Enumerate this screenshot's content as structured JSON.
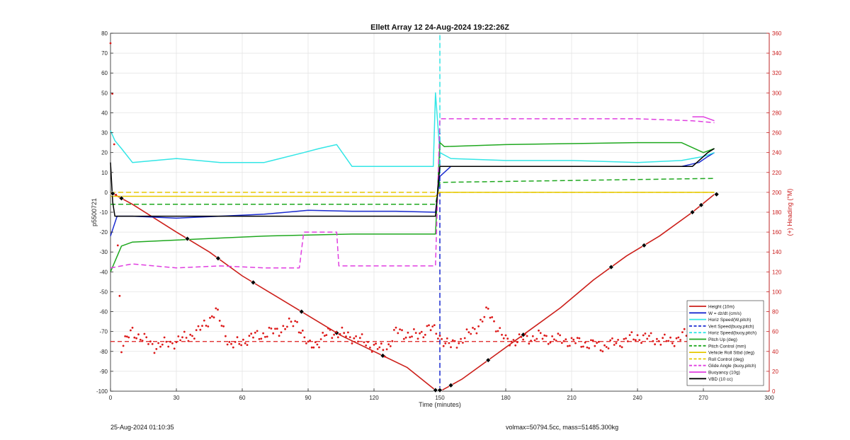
{
  "chart_data": {
    "type": "line",
    "title": "Ellett Array 12 24-Aug-2024 19:22:26Z",
    "xlabel": "Time (minutes)",
    "ylabel_left": "p5500721",
    "ylabel_right": "(+) Heading (°M)",
    "xlim": [
      0,
      300
    ],
    "ylim_left": [
      -100,
      80
    ],
    "ylim_right": [
      0,
      360
    ],
    "x_ticks": [
      0,
      30,
      60,
      90,
      120,
      150,
      180,
      210,
      240,
      270,
      300
    ],
    "y_ticks_left": [
      -100,
      -90,
      -80,
      -70,
      -60,
      -50,
      -40,
      -30,
      -20,
      -10,
      0,
      10,
      20,
      30,
      40,
      50,
      60,
      70,
      80
    ],
    "y_ticks_right": [
      0,
      20,
      40,
      60,
      80,
      100,
      120,
      140,
      160,
      180,
      200,
      220,
      240,
      260,
      280,
      300,
      320,
      340,
      360
    ],
    "grid": true,
    "legend_position": "bottom-right",
    "colors": {
      "height": "#cc1f1a",
      "w": "#1a2bd0",
      "horiz": "#33e6e6",
      "pitch": "#1fa81f",
      "roll": "#e6c800",
      "glide": "#e03ee0",
      "vbd": "#000000",
      "heading": "#dd1a1a",
      "axis_right": "#cc2222"
    },
    "series": [
      {
        "name": "Height (10m)",
        "style": "solid",
        "color": "#cc1f1a",
        "x": [
          0,
          10,
          20,
          30,
          45,
          60,
          75,
          90,
          105,
          120,
          135,
          148,
          151,
          160,
          175,
          190,
          205,
          220,
          235,
          250,
          265,
          275
        ],
        "y": [
          0,
          -6,
          -13,
          -20,
          -30,
          -42,
          -52,
          -62,
          -72,
          -80,
          -88,
          -99.5,
          -99.5,
          -94,
          -82,
          -70,
          -58,
          -44,
          -32,
          -22,
          -10,
          -1
        ]
      },
      {
        "name": "W = dz/dt (cm/s)",
        "style": "solid",
        "color": "#1a2bd0",
        "x": [
          0,
          3,
          10,
          30,
          50,
          70,
          90,
          110,
          130,
          148,
          150,
          155,
          180,
          210,
          240,
          260,
          268,
          272,
          275
        ],
        "y": [
          -22,
          -12,
          -12,
          -13,
          -12,
          -11,
          -9,
          -9.5,
          -9.5,
          -10,
          8,
          13,
          13,
          13,
          13,
          13,
          15,
          18,
          20
        ]
      },
      {
        "name": "Horiz Speed(W,pitch)",
        "style": "solid",
        "color": "#33e6e6",
        "x": [
          0,
          2,
          5,
          10,
          30,
          50,
          70,
          88,
          95,
          103,
          110,
          130,
          147,
          148,
          150,
          155,
          180,
          210,
          240,
          260,
          270,
          275
        ],
        "y": [
          31,
          26,
          22,
          15,
          17,
          15,
          15,
          20,
          22,
          24,
          13,
          13,
          13,
          50,
          20,
          17,
          16,
          16,
          15,
          16,
          18,
          20
        ]
      },
      {
        "name": "Vert Speed(buoy,pitch)",
        "style": "dashed",
        "color": "#1a2bd0",
        "x": [
          150,
          150,
          150
        ],
        "y": [
          -100,
          13,
          30
        ]
      },
      {
        "name": "Horiz Speed(buoy,pitch)",
        "style": "dashed",
        "color": "#33e6e6",
        "x": [
          150,
          150,
          150
        ],
        "y": [
          10,
          50,
          80
        ]
      },
      {
        "name": "Pitch Up (deg)",
        "style": "solid",
        "color": "#1fa81f",
        "x": [
          0,
          5,
          10,
          30,
          50,
          70,
          90,
          110,
          130,
          148,
          150,
          152,
          180,
          210,
          240,
          260,
          270,
          275
        ],
        "y": [
          -40,
          -27,
          -25,
          -24,
          -23,
          -22,
          -21.5,
          -21,
          -21,
          -21,
          25,
          23,
          24,
          24.5,
          25,
          25,
          20,
          22
        ]
      },
      {
        "name": "Pitch Control (mm)",
        "style": "dashed",
        "color": "#1fa81f",
        "x": [
          0,
          148,
          150,
          275
        ],
        "y": [
          -6,
          -6,
          5,
          7
        ]
      },
      {
        "name": "Vehicle Roll Stbd (deg)",
        "style": "solid",
        "color": "#e6c800",
        "x": [
          0,
          148,
          150,
          275
        ],
        "y": [
          -2,
          -2,
          0,
          0
        ]
      },
      {
        "name": "Roll Control (deg)",
        "style": "dashed",
        "color": "#e6c800",
        "x": [
          0,
          148,
          150,
          275
        ],
        "y": [
          0,
          0,
          0,
          0
        ]
      },
      {
        "name": "Glide Angle (buoy,pitch)",
        "style": "dashed",
        "color": "#e03ee0",
        "x": [
          0,
          10,
          30,
          50,
          70,
          86,
          88,
          103,
          104,
          130,
          148,
          150,
          155,
          180,
          210,
          240,
          265,
          275
        ],
        "y": [
          -38,
          -36,
          -38,
          -37,
          -38,
          -38,
          -20,
          -20,
          -37,
          -37,
          -37,
          37,
          37,
          37,
          37,
          37,
          36,
          35
        ]
      },
      {
        "name": "Buoyancy (10g)",
        "style": "solid",
        "color": "#e03ee0",
        "x": [
          265,
          270,
          275
        ],
        "y": [
          38,
          38,
          36
        ]
      },
      {
        "name": "VBD (10 cc)",
        "style": "solid",
        "color": "#000000",
        "x": [
          0,
          1,
          2,
          148,
          150,
          152,
          265,
          268,
          272,
          275
        ],
        "y": [
          15,
          -5,
          -12,
          -12,
          13,
          13,
          13,
          16,
          20,
          22
        ]
      }
    ],
    "heading": {
      "name": "Heading (deg, right axis)",
      "axis": "right",
      "mean": 50,
      "x": [
        0,
        5,
        10,
        20,
        30,
        40,
        48,
        55,
        65,
        75,
        85,
        90,
        95,
        100,
        110,
        120,
        125,
        130,
        140,
        145,
        150,
        155,
        165,
        172,
        180,
        195,
        210,
        225,
        240,
        255,
        265,
        270,
        275
      ],
      "y": [
        350,
        45,
        60,
        45,
        50,
        60,
        80,
        45,
        55,
        60,
        70,
        45,
        50,
        60,
        55,
        45,
        40,
        60,
        55,
        65,
        55,
        45,
        60,
        80,
        50,
        55,
        50,
        45,
        55,
        50,
        60,
        45,
        55
      ]
    },
    "height_markers_x": [
      1,
      5,
      35,
      49,
      65,
      87,
      103,
      124,
      148,
      150,
      155,
      172,
      188,
      228,
      243,
      265,
      269,
      276
    ],
    "annotations": {
      "left_footer": "25-Aug-2024 01:10:35",
      "right_footer": "volmax=50794.5cc, mass=51485.300kg"
    }
  }
}
